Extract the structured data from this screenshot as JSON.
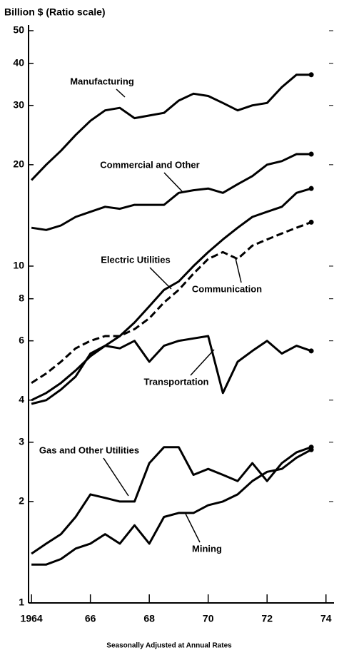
{
  "chart_data": {
    "type": "line",
    "y_label": "Billion $ (Ratio scale)",
    "footnote": "Seasonally Adjusted at Annual Rates",
    "log_scale": true,
    "x": [
      1964,
      1964.5,
      1965,
      1965.5,
      1966,
      1966.5,
      1967,
      1967.5,
      1968,
      1968.5,
      1969,
      1969.5,
      1970,
      1970.5,
      1971,
      1971.5,
      1972,
      1972.5,
      1973,
      1973.5
    ],
    "xlim": [
      1963.9,
      1974.2
    ],
    "xticks": [
      1964,
      {
        "value": 1966,
        "label": "66"
      },
      {
        "value": 1968,
        "label": "68"
      },
      {
        "value": 1970,
        "label": "70"
      },
      {
        "value": 1972,
        "label": "72"
      },
      {
        "value": 1974,
        "label": "74"
      }
    ],
    "ylim": [
      1,
      50
    ],
    "yticks": [
      1,
      2,
      3,
      4,
      6,
      8,
      10,
      20,
      30,
      40,
      50
    ],
    "series": [
      {
        "name": "Manufacturing",
        "color": "#000000",
        "values": [
          18,
          20,
          22,
          24.5,
          27,
          29,
          29.5,
          27.5,
          28,
          28.5,
          31,
          32.5,
          32,
          30.5,
          29,
          30,
          30.5,
          34,
          37,
          37
        ]
      },
      {
        "name": "Commercial and Other",
        "color": "#000000",
        "values": [
          13,
          12.8,
          13.2,
          14,
          14.5,
          15,
          14.8,
          15.2,
          15.2,
          15.2,
          16.5,
          16.8,
          17,
          16.5,
          17.5,
          18.5,
          20,
          20.5,
          21.5,
          21.5
        ]
      },
      {
        "name": "Electric Utilities",
        "color": "#000000",
        "values": [
          4,
          4.2,
          4.5,
          4.9,
          5.4,
          5.8,
          6.2,
          6.8,
          7.6,
          8.5,
          9,
          10,
          11,
          12,
          13,
          14,
          14.5,
          15,
          16.5,
          17
        ]
      },
      {
        "name": "Communication",
        "color": "#000000",
        "dashed": true,
        "values": [
          4.5,
          4.8,
          5.2,
          5.7,
          6,
          6.2,
          6.2,
          6.5,
          7,
          7.8,
          8.5,
          9.5,
          10.5,
          11,
          10.5,
          11.5,
          12,
          12.5,
          13,
          13.5
        ]
      },
      {
        "name": "Transportation",
        "color": "#000000",
        "values": [
          3.9,
          4.0,
          4.3,
          4.7,
          5.5,
          5.8,
          5.7,
          6.0,
          5.2,
          5.8,
          6.0,
          6.1,
          6.2,
          4.2,
          5.2,
          5.6,
          6.0,
          5.5,
          5.8,
          5.6
        ]
      },
      {
        "name": "Gas and Other Utilities",
        "color": "#000000",
        "values": [
          1.4,
          1.5,
          1.6,
          1.8,
          2.1,
          2.05,
          2.0,
          2.0,
          2.6,
          2.9,
          2.9,
          2.4,
          2.5,
          2.4,
          2.3,
          2.6,
          2.3,
          2.6,
          2.8,
          2.9
        ]
      },
      {
        "name": "Mining",
        "color": "#000000",
        "values": [
          1.3,
          1.3,
          1.35,
          1.45,
          1.5,
          1.6,
          1.5,
          1.7,
          1.5,
          1.8,
          1.85,
          1.85,
          1.95,
          2.0,
          2.1,
          2.3,
          2.45,
          2.5,
          2.7,
          2.85
        ]
      }
    ]
  }
}
